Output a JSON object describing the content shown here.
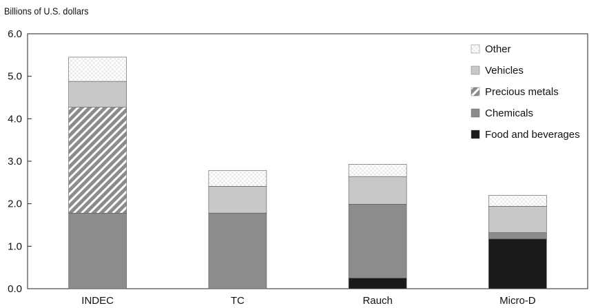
{
  "chart_data": {
    "type": "bar",
    "stacked": true,
    "ylabel": "Billions of U.S. dollars",
    "xlabel": "",
    "ylim": [
      0,
      6
    ],
    "yticks": [
      "0.0",
      "1.0",
      "2.0",
      "3.0",
      "4.0",
      "5.0",
      "6.0"
    ],
    "categories": [
      "INDEC",
      "TC",
      "Rauch",
      "Micro-D"
    ],
    "grid": false,
    "legend_position": "top-right",
    "series": [
      {
        "name": "Food and beverages",
        "color": "#1a1a1a",
        "pattern": "solid",
        "values": [
          0.0,
          0.0,
          0.25,
          1.17
        ]
      },
      {
        "name": "Chemicals",
        "color": "#8c8c8c",
        "pattern": "solid",
        "values": [
          1.78,
          1.78,
          1.74,
          0.15
        ]
      },
      {
        "name": "Precious metals",
        "color": "#8c8c8c",
        "pattern": "diagonal-stripes",
        "values": [
          2.49,
          0.0,
          0.0,
          0.0
        ]
      },
      {
        "name": "Vehicles",
        "color": "#c8c8c8",
        "pattern": "solid",
        "values": [
          0.61,
          0.63,
          0.65,
          0.62
        ]
      },
      {
        "name": "Other",
        "color": "#e0e0e0",
        "pattern": "dots",
        "values": [
          0.57,
          0.37,
          0.29,
          0.26
        ]
      }
    ]
  }
}
